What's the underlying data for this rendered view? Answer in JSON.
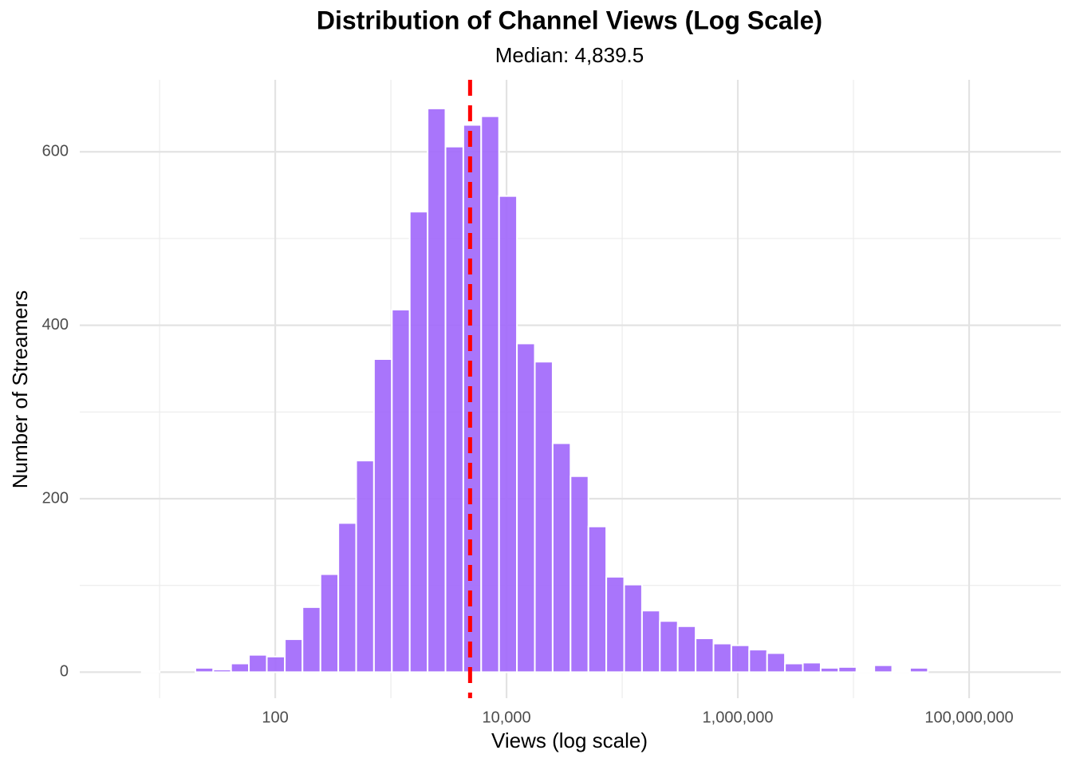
{
  "chart_data": {
    "type": "histogram",
    "title": "Distribution of Channel Views (Log Scale)",
    "subtitle": "Median: 4,839.5",
    "x_label": "Views (log scale)",
    "y_label": "Number of Streamers",
    "xscale": "log",
    "color": "#a066fb",
    "median": 4839.5,
    "median_color": "#ff0000",
    "bins": [
      4.91,
      7.01,
      10.0,
      14.3,
      20.4,
      29.1,
      41.5,
      59.2,
      84.5,
      121,
      172,
      246,
      351,
      501,
      714,
      1020,
      1455,
      2077,
      2965,
      4231,
      6039,
      8619,
      12300,
      17560,
      25060,
      35770,
      51050,
      72860,
      104000,
      148400,
      211800,
      302300,
      431500,
      615900,
      879000,
      1255000,
      1791000,
      2556000,
      3648000,
      5207000,
      7430000,
      10610000,
      15140000,
      21610000,
      30830000,
      44010000,
      62810000,
      89650000,
      127900000,
      182600000,
      260600000
    ],
    "counts": [
      0,
      1,
      0,
      0,
      5,
      3,
      10,
      20,
      18,
      38,
      75,
      113,
      172,
      244,
      361,
      418,
      531,
      650,
      606,
      631,
      641,
      549,
      379,
      358,
      264,
      226,
      168,
      110,
      101,
      71,
      59,
      53,
      39,
      33,
      31,
      26,
      22,
      10,
      11,
      5,
      6,
      1,
      8,
      1,
      5,
      0,
      0,
      0,
      0,
      0
    ],
    "xlim": [
      2.04,
      621000000
    ],
    "xticks": [
      100,
      {
        "value": 10000,
        "label": "10,000"
      },
      {
        "value": 1000000,
        "label": "1,000,000"
      },
      {
        "value": 100000000,
        "label": "100,000,000"
      }
    ],
    "x_minor_ticks": [
      10,
      1000,
      100000,
      10000000
    ],
    "ylim": [
      -30,
      683
    ],
    "yticks": [
      0,
      200,
      400,
      600
    ],
    "y_minor_ticks": [
      100,
      300,
      500
    ],
    "grid": true
  }
}
